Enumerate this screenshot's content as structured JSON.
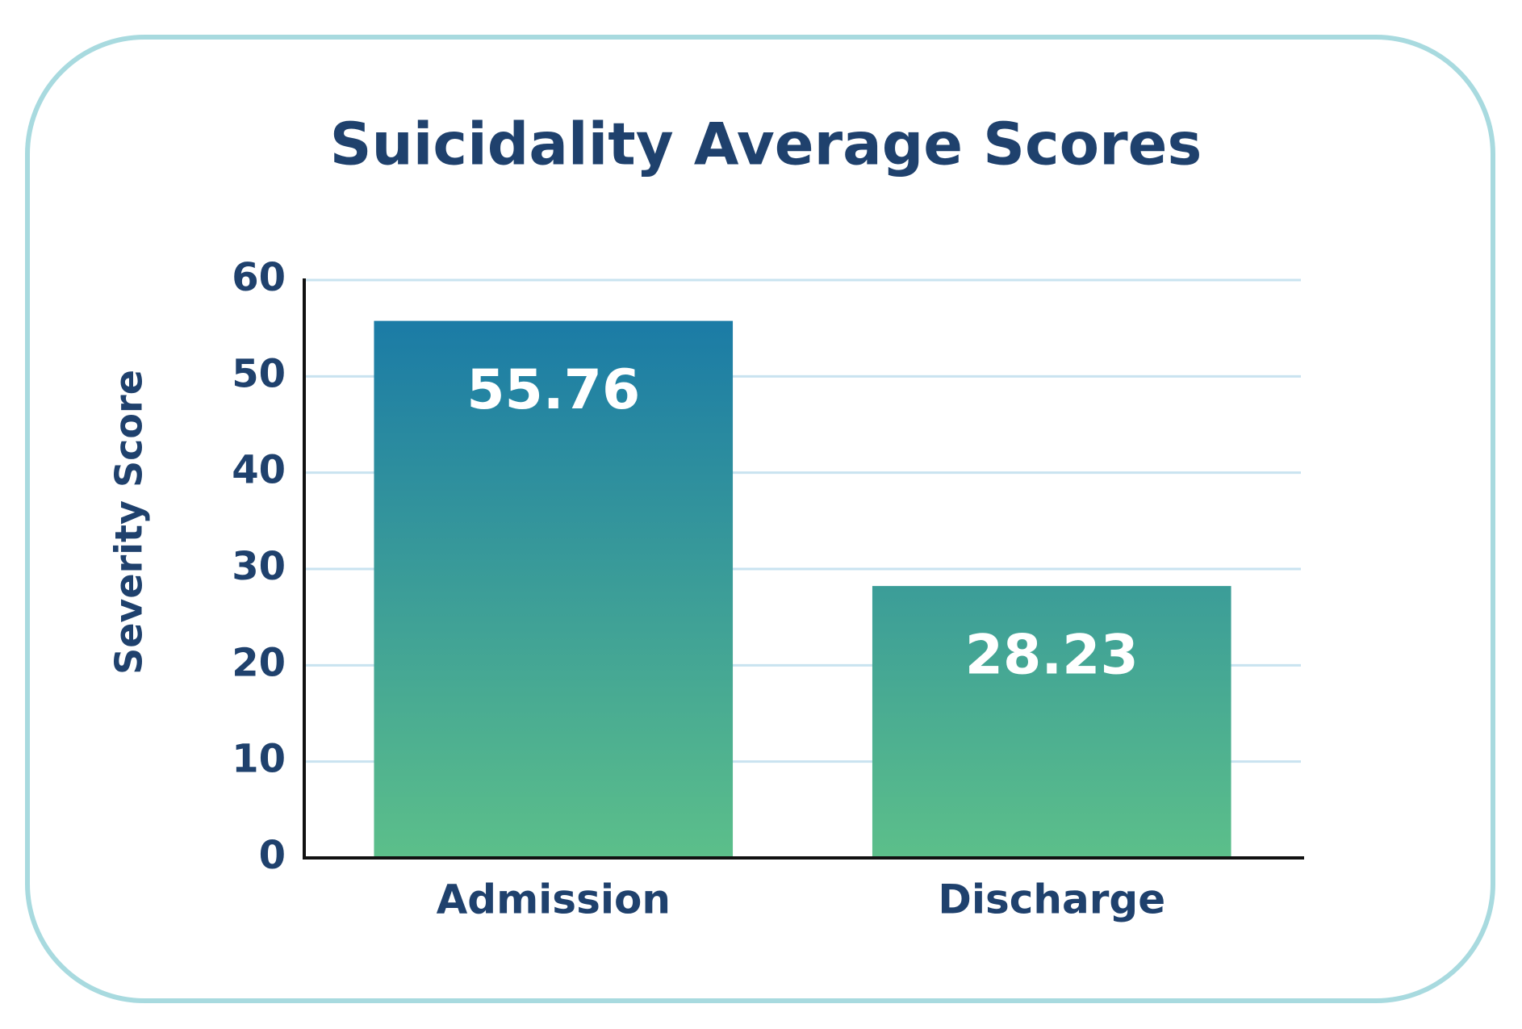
{
  "chart_data": {
    "type": "bar",
    "title": "Suicidality Average Scores",
    "y_label": "Severity Score",
    "categories": [
      "Admission",
      "Discharge"
    ],
    "values": [
      55.76,
      28.23
    ],
    "gradient": [
      "#1676a8",
      "#5cbf8a"
    ],
    "ylim": [
      0,
      60
    ],
    "yticks": [
      0,
      10,
      20,
      30,
      40,
      50,
      60
    ],
    "grid": true
  }
}
